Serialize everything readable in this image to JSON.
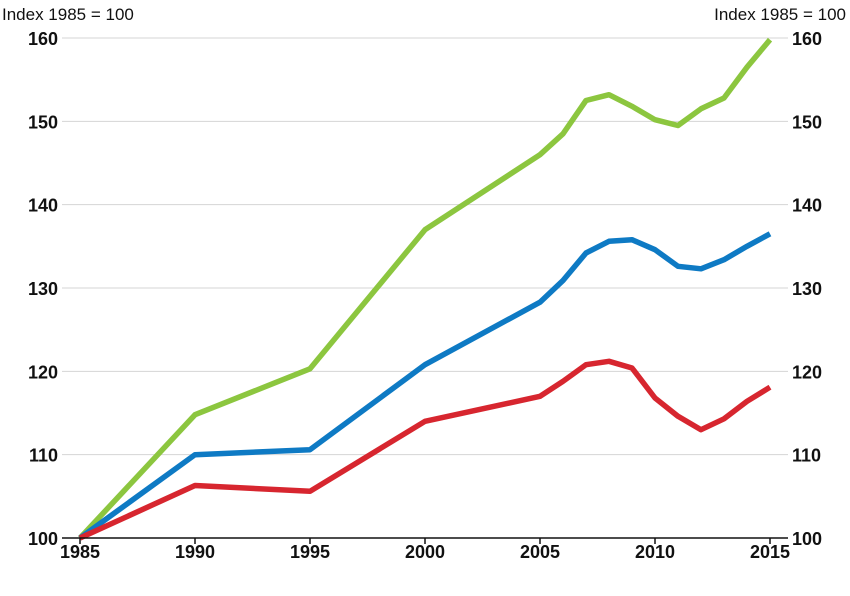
{
  "chart_data": {
    "type": "line",
    "title": "",
    "unit_left": "Index 1985 = 100",
    "unit_right": "Index 1985 = 100",
    "xlim": [
      1985,
      2015
    ],
    "ylim": [
      100,
      160
    ],
    "x_ticks": [
      "1985",
      "1990",
      "1995",
      "2000",
      "2005",
      "2010",
      "2015"
    ],
    "y_ticks": [
      "100",
      "110",
      "120",
      "130",
      "140",
      "150",
      "160"
    ],
    "grid": "horizontal",
    "legend": "none",
    "series": [
      {
        "color": "#8cc63f",
        "x": [
          1985,
          1990,
          1995,
          2000,
          2005,
          2006,
          2007,
          2008,
          2009,
          2010,
          2011,
          2012,
          2013,
          2014,
          2015
        ],
        "y": [
          100,
          114.8,
          120.3,
          137.0,
          146.0,
          148.5,
          152.5,
          153.2,
          151.8,
          150.2,
          149.5,
          151.5,
          152.8,
          156.5,
          159.8
        ]
      },
      {
        "color": "#0e7ac4",
        "x": [
          1985,
          1990,
          1995,
          2000,
          2005,
          2006,
          2007,
          2008,
          2009,
          2010,
          2011,
          2012,
          2013,
          2014,
          2015
        ],
        "y": [
          100,
          110.0,
          110.6,
          120.8,
          128.3,
          130.9,
          134.2,
          135.6,
          135.8,
          134.6,
          132.6,
          132.3,
          133.4,
          135.0,
          136.5
        ]
      },
      {
        "color": "#d7262f",
        "x": [
          1985,
          1990,
          1995,
          2000,
          2005,
          2006,
          2007,
          2008,
          2009,
          2010,
          2011,
          2012,
          2013,
          2014,
          2015
        ],
        "y": [
          100,
          106.3,
          105.6,
          114.0,
          117.0,
          118.8,
          120.8,
          121.2,
          120.4,
          116.8,
          114.6,
          113.0,
          114.3,
          116.4,
          118.1
        ]
      }
    ]
  }
}
